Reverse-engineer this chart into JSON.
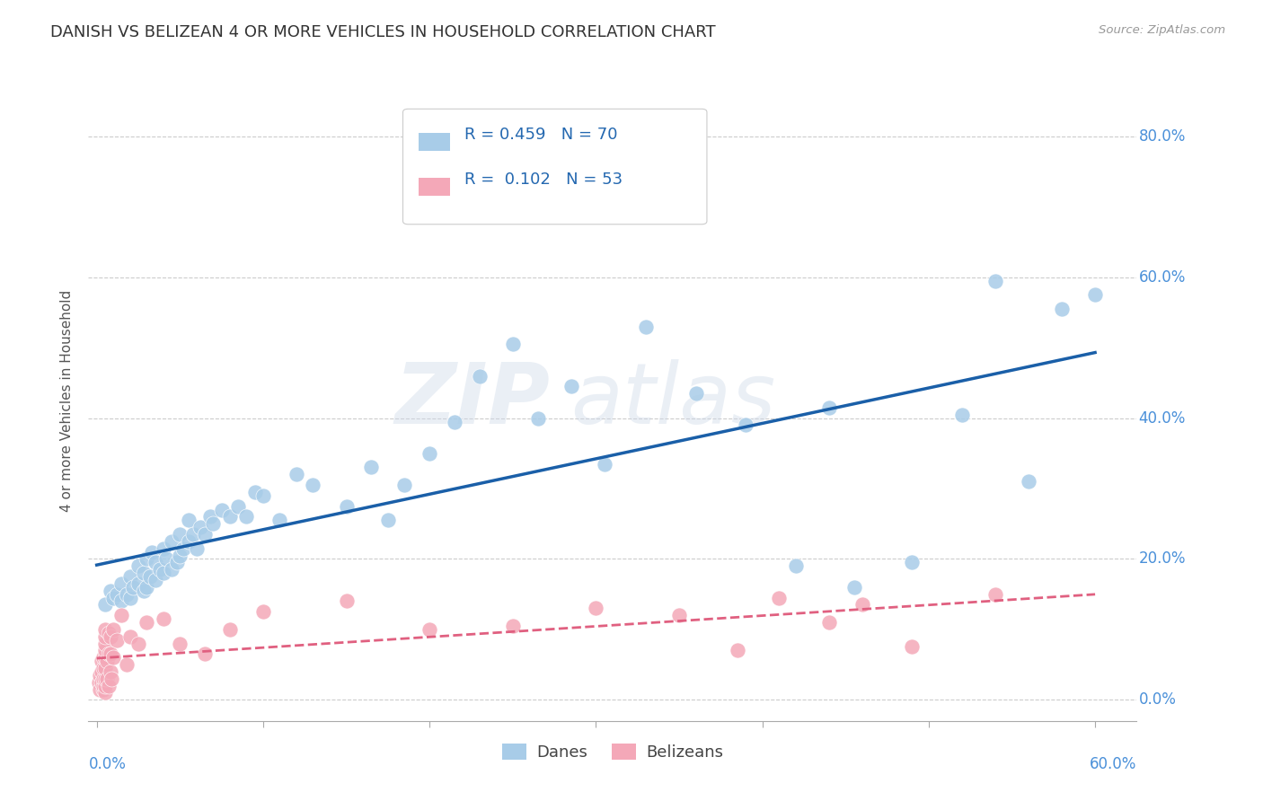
{
  "title": "DANISH VS BELIZEAN 4 OR MORE VEHICLES IN HOUSEHOLD CORRELATION CHART",
  "source": "Source: ZipAtlas.com",
  "ylabel": "4 or more Vehicles in Household",
  "ytick_labels": [
    "0.0%",
    "20.0%",
    "40.0%",
    "60.0%",
    "80.0%"
  ],
  "ytick_values": [
    0.0,
    0.2,
    0.4,
    0.6,
    0.8
  ],
  "xlim": [
    -0.005,
    0.625
  ],
  "ylim": [
    -0.03,
    0.88
  ],
  "danish_color": "#a8cce8",
  "belizean_color": "#f4a8b8",
  "danish_line_color": "#1a5fa8",
  "belizean_line_color": "#e06080",
  "danes_x": [
    0.005,
    0.008,
    0.01,
    0.012,
    0.015,
    0.015,
    0.018,
    0.02,
    0.02,
    0.022,
    0.025,
    0.025,
    0.028,
    0.028,
    0.03,
    0.03,
    0.032,
    0.033,
    0.035,
    0.035,
    0.038,
    0.04,
    0.04,
    0.042,
    0.045,
    0.045,
    0.048,
    0.05,
    0.05,
    0.052,
    0.055,
    0.055,
    0.058,
    0.06,
    0.062,
    0.065,
    0.068,
    0.07,
    0.075,
    0.08,
    0.085,
    0.09,
    0.095,
    0.1,
    0.11,
    0.12,
    0.13,
    0.15,
    0.165,
    0.175,
    0.185,
    0.2,
    0.215,
    0.23,
    0.25,
    0.265,
    0.285,
    0.305,
    0.33,
    0.36,
    0.39,
    0.42,
    0.44,
    0.455,
    0.49,
    0.52,
    0.54,
    0.56,
    0.58,
    0.6
  ],
  "danes_y": [
    0.135,
    0.155,
    0.145,
    0.15,
    0.14,
    0.165,
    0.15,
    0.145,
    0.175,
    0.16,
    0.165,
    0.19,
    0.155,
    0.18,
    0.16,
    0.2,
    0.175,
    0.21,
    0.17,
    0.195,
    0.185,
    0.18,
    0.215,
    0.2,
    0.185,
    0.225,
    0.195,
    0.205,
    0.235,
    0.215,
    0.225,
    0.255,
    0.235,
    0.215,
    0.245,
    0.235,
    0.26,
    0.25,
    0.27,
    0.26,
    0.275,
    0.26,
    0.295,
    0.29,
    0.255,
    0.32,
    0.305,
    0.275,
    0.33,
    0.255,
    0.305,
    0.35,
    0.395,
    0.46,
    0.505,
    0.4,
    0.445,
    0.335,
    0.53,
    0.435,
    0.39,
    0.19,
    0.415,
    0.16,
    0.195,
    0.405,
    0.595,
    0.31,
    0.555,
    0.575
  ],
  "belizeans_x": [
    0.001,
    0.002,
    0.002,
    0.003,
    0.003,
    0.003,
    0.004,
    0.004,
    0.004,
    0.004,
    0.004,
    0.005,
    0.005,
    0.005,
    0.005,
    0.005,
    0.005,
    0.005,
    0.005,
    0.005,
    0.006,
    0.006,
    0.007,
    0.007,
    0.007,
    0.008,
    0.008,
    0.008,
    0.009,
    0.01,
    0.01,
    0.012,
    0.015,
    0.018,
    0.02,
    0.025,
    0.03,
    0.04,
    0.05,
    0.065,
    0.08,
    0.1,
    0.15,
    0.2,
    0.25,
    0.3,
    0.35,
    0.385,
    0.41,
    0.44,
    0.46,
    0.49,
    0.54
  ],
  "belizeans_y": [
    0.025,
    0.015,
    0.035,
    0.025,
    0.04,
    0.055,
    0.015,
    0.02,
    0.03,
    0.045,
    0.06,
    0.01,
    0.02,
    0.03,
    0.045,
    0.06,
    0.07,
    0.08,
    0.09,
    0.1,
    0.03,
    0.055,
    0.02,
    0.065,
    0.095,
    0.04,
    0.065,
    0.09,
    0.03,
    0.06,
    0.1,
    0.085,
    0.12,
    0.05,
    0.09,
    0.08,
    0.11,
    0.115,
    0.08,
    0.065,
    0.1,
    0.125,
    0.14,
    0.1,
    0.105,
    0.13,
    0.12,
    0.07,
    0.145,
    0.11,
    0.135,
    0.075,
    0.15
  ]
}
